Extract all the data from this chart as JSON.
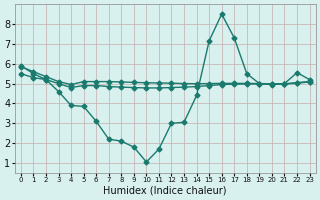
{
  "x": [
    0,
    1,
    2,
    3,
    4,
    5,
    6,
    7,
    8,
    9,
    10,
    11,
    12,
    13,
    14,
    15,
    16,
    17,
    18,
    19,
    20,
    21,
    22,
    23
  ],
  "line1": [
    5.9,
    5.5,
    5.2,
    4.6,
    3.9,
    3.85,
    3.1,
    2.2,
    2.1,
    1.8,
    1.05,
    1.7,
    3.0,
    3.05,
    4.4,
    7.15,
    8.5,
    7.3,
    5.5,
    5.0,
    4.95,
    5.0,
    5.55,
    5.2
  ],
  "line2": [
    5.85,
    5.6,
    5.35,
    5.1,
    4.95,
    5.1,
    5.1,
    5.1,
    5.08,
    5.06,
    5.04,
    5.03,
    5.02,
    5.0,
    4.99,
    5.0,
    5.01,
    5.01,
    5.01,
    5.0,
    4.99,
    4.99,
    5.05,
    5.1
  ],
  "line3": [
    5.5,
    5.3,
    5.2,
    5.0,
    4.8,
    4.9,
    4.9,
    4.85,
    4.82,
    4.8,
    4.78,
    4.78,
    4.8,
    4.82,
    4.85,
    4.9,
    4.95,
    4.97,
    4.98,
    4.98,
    4.97,
    4.97,
    5.02,
    5.08
  ],
  "color": "#1a7a6e",
  "bg_color": "#d8f0ee",
  "grid_color": "#c8dede",
  "xlabel": "Humidex (Indice chaleur)",
  "ylim": [
    0.5,
    9.0
  ],
  "xlim": [
    -0.5,
    23.5
  ],
  "yticks": [
    1,
    2,
    3,
    4,
    5,
    6,
    7,
    8
  ],
  "xticks": [
    0,
    1,
    2,
    3,
    4,
    5,
    6,
    7,
    8,
    9,
    10,
    11,
    12,
    13,
    14,
    15,
    16,
    17,
    18,
    19,
    20,
    21,
    22,
    23
  ],
  "marker": "D",
  "markersize": 2.5,
  "linewidth": 1.0
}
